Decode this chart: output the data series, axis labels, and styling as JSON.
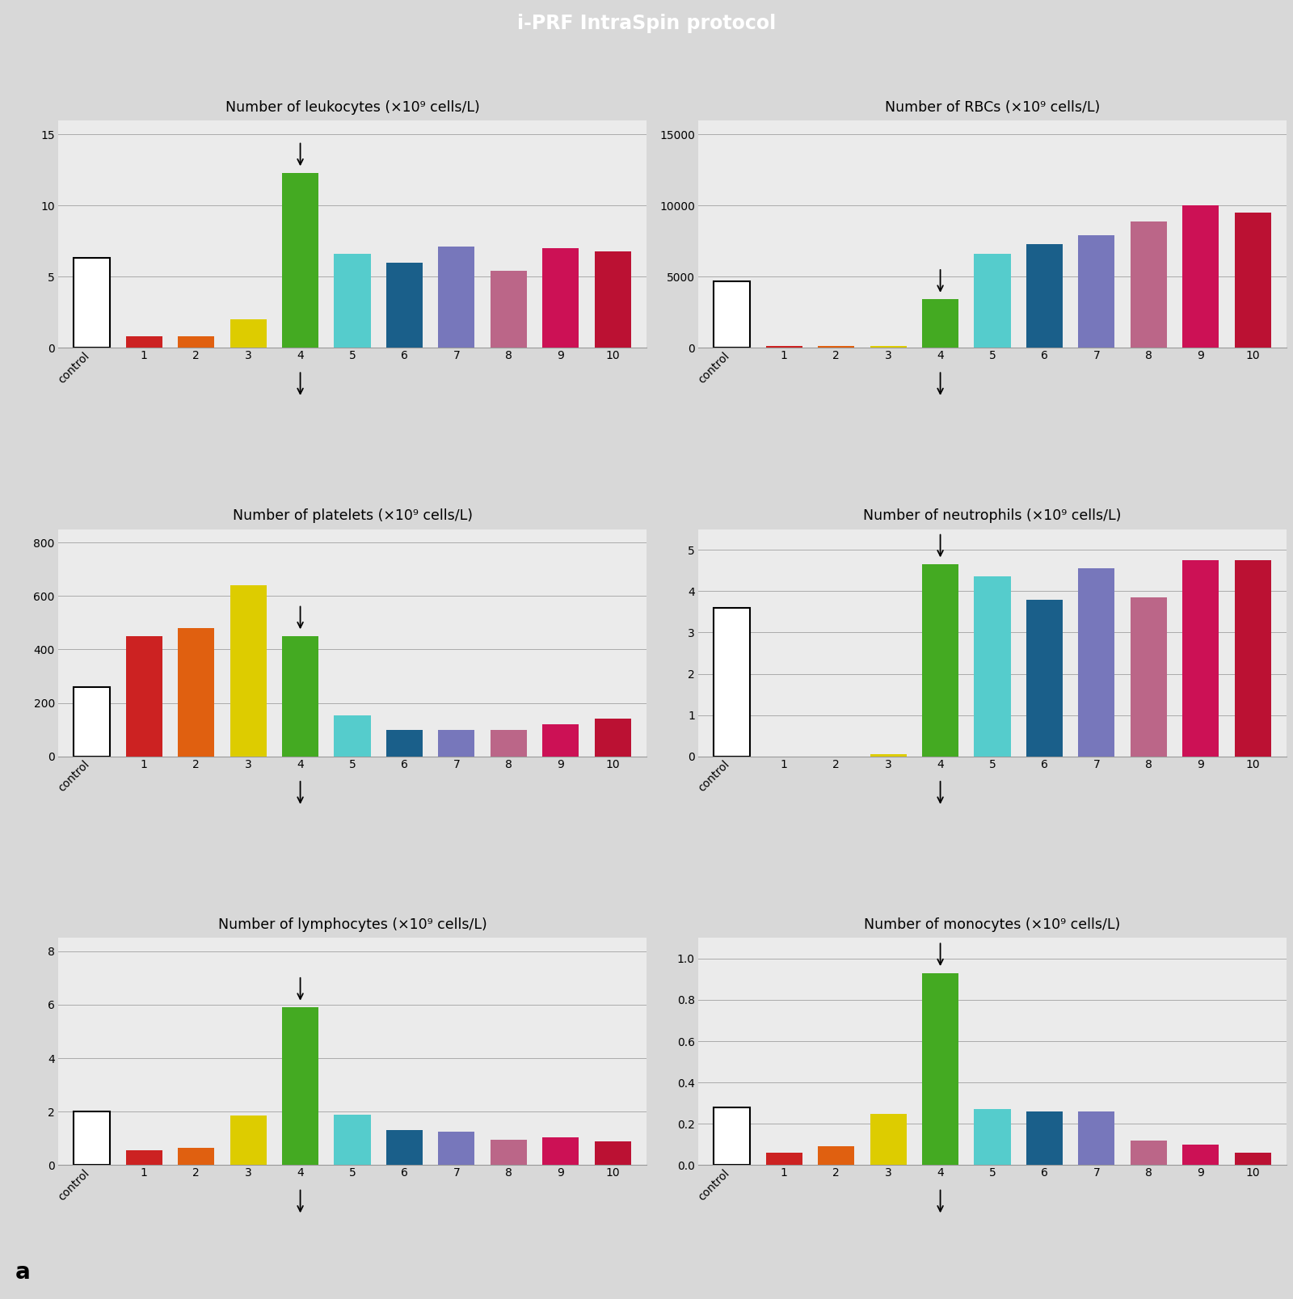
{
  "header_title": "i-PRF IntraSpin protocol",
  "header_color": "#3aada0",
  "header_text_color": "#ffffff",
  "bg_color": "#d8d8d8",
  "panel_bg": "#ebebeb",
  "grid_color": "#aaaaaa",
  "label_a": "a",
  "categories": [
    "control",
    "1",
    "2",
    "3",
    "4",
    "5",
    "6",
    "7",
    "8",
    "9",
    "10"
  ],
  "bar_colors": [
    "#ffffff",
    "#cc2222",
    "#e06010",
    "#ddcc00",
    "#44aa22",
    "#55cccc",
    "#1a5f8a",
    "#7777bb",
    "#bb6688",
    "#cc1155",
    "#bb1133"
  ],
  "bar_edge_colors": [
    "#000000",
    "#cc2222",
    "#e06010",
    "#ddcc00",
    "#44aa22",
    "#55cccc",
    "#1a5f8a",
    "#7777bb",
    "#bb6688",
    "#cc1155",
    "#bb1133"
  ],
  "charts": [
    {
      "title": "Number of leukocytes (×10⁹ cells/L)",
      "values": [
        6.3,
        0.8,
        0.8,
        2.0,
        12.3,
        6.6,
        6.0,
        7.1,
        5.4,
        7.0,
        6.8
      ],
      "ylim": [
        0,
        16
      ],
      "yticks": [
        0,
        5,
        10,
        15
      ],
      "arrow_bar": 4
    },
    {
      "title": "Number of RBCs (×10⁹ cells/L)",
      "values": [
        4700,
        130,
        150,
        120,
        3400,
        6600,
        7300,
        7900,
        8900,
        10000,
        9500
      ],
      "ylim": [
        0,
        16000
      ],
      "yticks": [
        0,
        5000,
        10000,
        15000
      ],
      "arrow_bar": 4
    },
    {
      "title": "Number of platelets (×10⁹ cells/L)",
      "values": [
        260,
        450,
        480,
        640,
        450,
        155,
        100,
        100,
        100,
        120,
        140
      ],
      "ylim": [
        0,
        850
      ],
      "yticks": [
        0,
        200,
        400,
        600,
        800
      ],
      "arrow_bar": 4
    },
    {
      "title": "Number of neutrophils (×10⁹ cells/L)",
      "values": [
        3.6,
        0.0,
        0.0,
        0.05,
        4.65,
        4.35,
        3.8,
        4.55,
        3.85,
        4.75,
        4.75
      ],
      "ylim": [
        0,
        5.5
      ],
      "yticks": [
        0,
        1,
        2,
        3,
        4,
        5
      ],
      "arrow_bar": 4
    },
    {
      "title": "Number of lymphocytes (×10⁹ cells/L)",
      "values": [
        2.0,
        0.55,
        0.65,
        1.85,
        5.9,
        1.9,
        1.3,
        1.25,
        0.95,
        1.05,
        0.9
      ],
      "ylim": [
        0,
        8.5
      ],
      "yticks": [
        0,
        2,
        4,
        6,
        8
      ],
      "arrow_bar": 4
    },
    {
      "title": "Number of monocytes (×10⁹ cells/L)",
      "values": [
        0.28,
        0.06,
        0.09,
        0.25,
        0.93,
        0.27,
        0.26,
        0.26,
        0.12,
        0.1,
        0.06
      ],
      "ylim": [
        0,
        1.1
      ],
      "yticks": [
        0,
        0.2,
        0.4,
        0.6,
        0.8,
        1.0
      ],
      "arrow_bar": 4
    }
  ]
}
